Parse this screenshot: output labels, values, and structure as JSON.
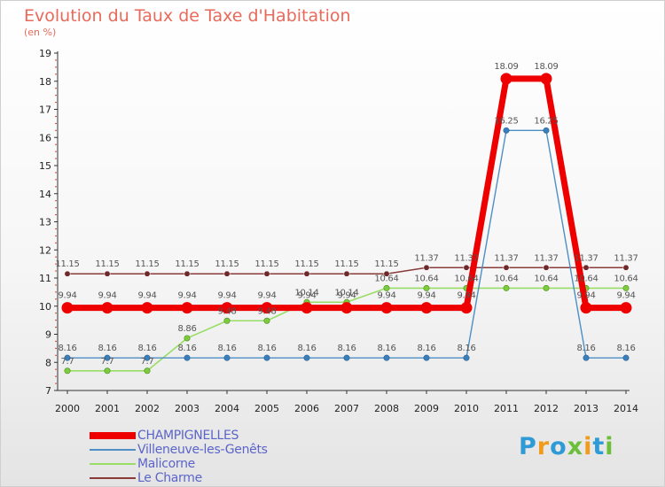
{
  "header": {
    "title": "Evolution du Taux de Taxe d'Habitation",
    "subtitle": "(en %)"
  },
  "logo": {
    "text": "Proxiti",
    "colors": [
      "#2e9bd6",
      "#f29a1a",
      "#2e9bd6",
      "#6cbf3a",
      "#f29a1a",
      "#2e9bd6",
      "#6cbf3a"
    ]
  },
  "chart_data": {
    "type": "line",
    "title": "Evolution du Taux de Taxe d'Habitation",
    "subtitle": "(en %)",
    "xlabel": "",
    "ylabel": "",
    "x": [
      2000,
      2001,
      2002,
      2003,
      2004,
      2005,
      2006,
      2007,
      2008,
      2009,
      2010,
      2011,
      2012,
      2013,
      2014
    ],
    "ylim": [
      7,
      19
    ],
    "yticks": [
      7,
      8,
      9,
      10,
      11,
      12,
      13,
      14,
      15,
      16,
      17,
      18,
      19
    ],
    "grid": false,
    "legend_position": "bottom-left",
    "series": [
      {
        "name": "CHAMPIGNELLES",
        "color": "#ee0000",
        "values": [
          9.94,
          9.94,
          9.94,
          9.94,
          9.94,
          9.94,
          9.94,
          9.94,
          9.94,
          9.94,
          9.94,
          18.09,
          18.09,
          9.94,
          9.94
        ],
        "labels": [
          "9.94",
          "9.94",
          "9.94",
          "9.94",
          "9.94",
          "9.94",
          "9.94",
          "9.94",
          "9.94",
          "9.94",
          "9.94",
          "18.09",
          "18.09",
          "9.94",
          "9.94"
        ]
      },
      {
        "name": "Villeneuve-les-Genêts",
        "color": "#4d8fc4",
        "values": [
          8.16,
          8.16,
          8.16,
          8.16,
          8.16,
          8.16,
          8.16,
          8.16,
          8.16,
          8.16,
          8.16,
          16.25,
          16.25,
          8.16,
          8.16
        ],
        "labels": [
          "8.16",
          "8.16",
          "8.16",
          "8.16",
          "8.16",
          "8.16",
          "8.16",
          "8.16",
          "8.16",
          "8.16",
          "8.16",
          "16.25",
          "16.25",
          "8.16",
          "8.16"
        ]
      },
      {
        "name": "Malicorne",
        "color": "#99dd66",
        "values": [
          7.7,
          7.7,
          7.7,
          8.86,
          9.48,
          9.48,
          10.14,
          10.14,
          10.64,
          10.64,
          10.64,
          10.64,
          10.64,
          10.64,
          10.64
        ],
        "labels": [
          "7.7",
          "7.7",
          "7.7",
          "8.86",
          "9.48",
          "9.48",
          "10.14",
          "10.14",
          "10.64",
          "10.64",
          "10.64",
          "10.64",
          "10.64",
          "10.64",
          "10.64"
        ]
      },
      {
        "name": "Le Charme",
        "color": "#8b3a3a",
        "values": [
          11.15,
          11.15,
          11.15,
          11.15,
          11.15,
          11.15,
          11.15,
          11.15,
          11.15,
          11.37,
          11.37,
          11.37,
          11.37,
          11.37,
          11.37
        ],
        "labels": [
          "11.15",
          "11.15",
          "11.15",
          "11.15",
          "11.15",
          "11.15",
          "11.15",
          "11.15",
          "11.15",
          "11.37",
          "11.37",
          "11.37",
          "11.37",
          "11.37",
          "11.37"
        ]
      }
    ]
  }
}
